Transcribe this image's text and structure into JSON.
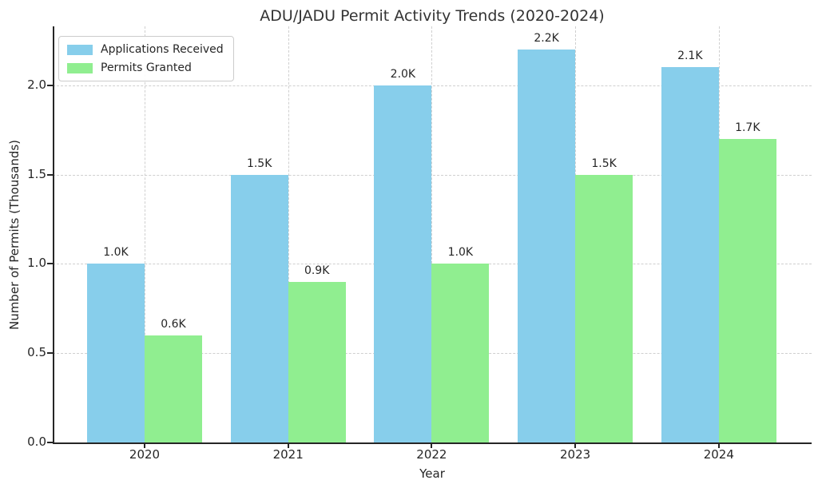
{
  "figure": {
    "title": "ADU/JADU Permit Activity Trends (2020-2024)"
  },
  "chart_data": {
    "type": "bar",
    "title": "ADU/JADU Permit Activity Trends (2020-2024)",
    "xlabel": "Year",
    "ylabel": "Number of Permits (Thousands)",
    "categories": [
      "2020",
      "2021",
      "2022",
      "2023",
      "2024"
    ],
    "series": [
      {
        "name": "Applications Received",
        "color": "#87CEEB",
        "values": [
          1.0,
          1.5,
          2.0,
          2.2,
          2.1
        ],
        "bar_labels": [
          "1.0K",
          "1.5K",
          "2.0K",
          "2.2K",
          "2.1K"
        ]
      },
      {
        "name": "Permits Granted",
        "color": "#90EE90",
        "values": [
          0.6,
          0.9,
          1.0,
          1.5,
          1.7
        ],
        "bar_labels": [
          "0.6K",
          "0.9K",
          "1.0K",
          "1.5K",
          "1.7K"
        ]
      }
    ],
    "ylim": [
      0,
      2.33
    ],
    "yticks": [
      {
        "value": 0.0,
        "label": "0.0"
      },
      {
        "value": 0.5,
        "label": "0.5"
      },
      {
        "value": 1.0,
        "label": "1.0"
      },
      {
        "value": 1.5,
        "label": "1.5"
      },
      {
        "value": 2.0,
        "label": "2.0"
      }
    ],
    "grid": "dashed-both-axes",
    "legend_position": "upper-left",
    "colors": {
      "applications": "#87CEEB",
      "granted": "#90EE90",
      "grid": "#cfcfcf",
      "text": "#262626",
      "title": "#333333",
      "background": "#ffffff"
    }
  }
}
